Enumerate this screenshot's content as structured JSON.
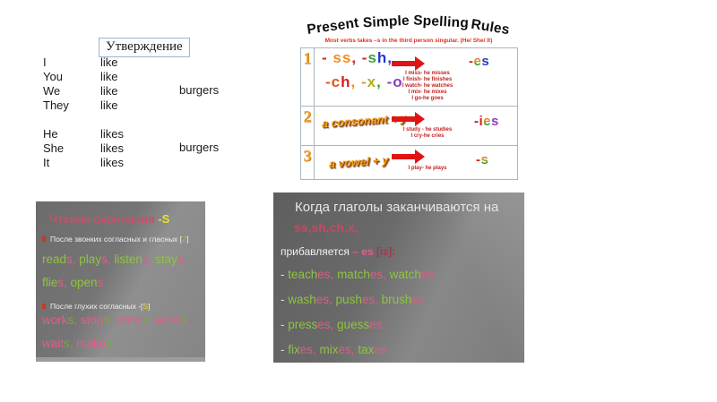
{
  "colors": {
    "red": "#d42020",
    "orange": "#f09020",
    "green": "#3f9e3f",
    "blue": "#2438c8",
    "purple": "#8a3fc0",
    "olive": "#b0b020",
    "orangered": "#e05818",
    "darkred": "#a02020",
    "white": "#f0f0f0",
    "yellow": "#e6e22e",
    "lightgreen": "#8fc43f",
    "pink": "#e25c8e",
    "crimson": "#c24b63"
  },
  "affirmation": {
    "header": "Утверждение",
    "plural": {
      "pronouns": [
        "I",
        "You",
        "We",
        "They"
      ],
      "verb": "like",
      "object": "burgers"
    },
    "singular": {
      "pronouns": [
        "He",
        "She",
        "It"
      ],
      "verb": "likes",
      "object": "burgers"
    }
  },
  "rules": {
    "title_words": [
      "Present",
      "Simple",
      "Spelling",
      "Rules"
    ],
    "subtitle": "Most verbs takes –s in the third person singular. (He/ She/ It)",
    "rows": [
      {
        "number": "1",
        "rule_line1": [
          {
            "t": "- ",
            "c": "red"
          },
          {
            "t": "ss",
            "c": "orange"
          },
          {
            "t": ", ",
            "c": "red"
          },
          {
            "t": "-",
            "c": "red"
          },
          {
            "t": "s",
            "c": "green"
          },
          {
            "t": "h",
            "c": "blue"
          },
          {
            "t": ",",
            "c": "blue"
          }
        ],
        "rule_line2": [
          {
            "t": "-c",
            "c": "orangered"
          },
          {
            "t": "h",
            "c": "red"
          },
          {
            "t": ", ",
            "c": "orange"
          },
          {
            "t": "-",
            "c": "olive"
          },
          {
            "t": "x",
            "c": "olive"
          },
          {
            "t": ", ",
            "c": "green"
          },
          {
            "t": "-o",
            "c": "purple"
          }
        ],
        "examples": [
          "I miss- he misses",
          "I finish- he finishes",
          "I watch- he watches",
          "I mix- he mixes",
          "I go-he goes"
        ],
        "ending": [
          {
            "t": "-",
            "c": "red"
          },
          {
            "t": "e",
            "c": "rainbow"
          },
          {
            "t": "s",
            "c": "blue"
          }
        ]
      },
      {
        "number": "2",
        "rule": "a consonant + y",
        "examples": [
          "I study - he studies",
          "I cry-he cries"
        ],
        "ending": [
          {
            "t": "-",
            "c": "darkred"
          },
          {
            "t": "i",
            "c": "red"
          },
          {
            "t": "e",
            "c": "rainbow"
          },
          {
            "t": "s",
            "c": "purple"
          }
        ]
      },
      {
        "number": "3",
        "rule": "a vowel + y",
        "examples": [
          "I play- he plays"
        ],
        "ending": [
          {
            "t": "-",
            "c": "red"
          },
          {
            "t": "s",
            "c": "rainbow"
          }
        ]
      }
    ]
  },
  "reading": {
    "title_main": "Чтение окончания",
    "title_suffix": " -S",
    "rule1_text": "После звонких согласных  и гласных ",
    "rule1_phoneme": [
      {
        "t": "[",
        "c": "white"
      },
      {
        "t": "Z",
        "c": "lightgreen"
      },
      {
        "t": "]",
        "c": "white"
      }
    ],
    "line1": {
      "items": [
        {
          "base": "read",
          "end": "s"
        },
        {
          "base": "play",
          "end": "s"
        },
        {
          "base": "listen",
          "end": "s"
        },
        {
          "base": "stay",
          "end": "s"
        }
      ],
      "trailing": ","
    },
    "line2": {
      "items": [
        {
          "base": "flie",
          "end": "s"
        },
        {
          "base": "open",
          "end": "s"
        }
      ]
    },
    "rule2_text": "После глухих согласных ",
    "rule2_phoneme": [
      {
        "t": "-[",
        "c": "white"
      },
      {
        "t": "S",
        "c": "yellow"
      },
      {
        "t": "]",
        "c": "white"
      }
    ],
    "line3": {
      "items": [
        {
          "base": "work",
          "end": "s"
        },
        {
          "base": "stop",
          "end": "s"
        },
        {
          "base": "drink",
          "end": "s"
        },
        {
          "base": "write",
          "end": "s"
        }
      ],
      "trailing": ","
    },
    "line4": {
      "items": [
        {
          "base": "wait",
          "end": "s"
        },
        {
          "base": "make",
          "end": "s"
        }
      ]
    }
  },
  "es_panel": {
    "title_line1": "Когда глаголы заканчиваются на",
    "title_line2": "ss,sh,ch,x,",
    "adds_label": "прибавляется ",
    "adds_suffix": "– es ",
    "adds_phoneme": "[iz]:",
    "dash": "- ",
    "line1": {
      "items": [
        {
          "base": "teach",
          "end": "es"
        },
        {
          "base": "match",
          "end": "es"
        },
        {
          "base": "watch",
          "end": "es"
        }
      ]
    },
    "line2": {
      "items": [
        {
          "base": "wash",
          "end": "es"
        },
        {
          "base": "push",
          "end": "es"
        },
        {
          "base": "brush",
          "end": "es"
        }
      ]
    },
    "line3": {
      "items": [
        {
          "base": "press",
          "end": "es"
        },
        {
          "base": "guess",
          "end": "es"
        }
      ],
      "trailing": ","
    },
    "line4": {
      "items": [
        {
          "base": "fix",
          "end": "es"
        },
        {
          "base": "mix",
          "end": "es"
        },
        {
          "base": "tax",
          "end": "es"
        }
      ]
    }
  }
}
